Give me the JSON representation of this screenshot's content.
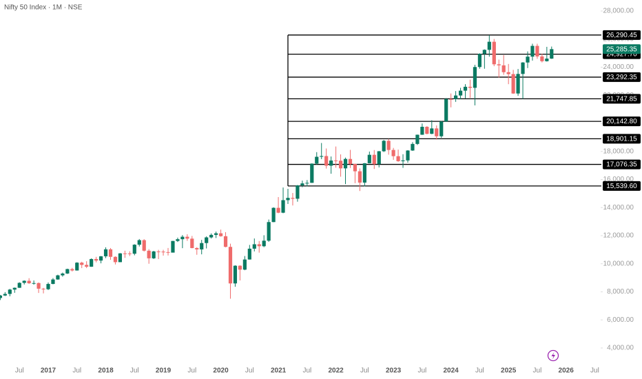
{
  "chart_data": {
    "type": "candlestick",
    "title": "Nifty 50 Index · 1M · NSE",
    "up_color": "#0b7a62",
    "down_color": "#ef6b6b",
    "ylim": [
      4000,
      28000
    ],
    "yticks": [
      {
        "value": 4000,
        "label": "4,000.00"
      },
      {
        "value": 6000,
        "label": "6,000.00"
      },
      {
        "value": 8000,
        "label": "8,000.00"
      },
      {
        "value": 10000,
        "label": "10,000.00"
      },
      {
        "value": 12000,
        "label": "12,000.00"
      },
      {
        "value": 14000,
        "label": "14,000.00"
      },
      {
        "value": 16000,
        "label": "16,000.00"
      },
      {
        "value": 18000,
        "label": "18,000.00"
      },
      {
        "value": 20000,
        "label": "20,000.00"
      },
      {
        "value": 22000,
        "label": "22,000.00"
      },
      {
        "value": 24000,
        "label": "24,000.00"
      },
      {
        "value": 26000,
        "label": "26,000.00"
      },
      {
        "value": 28000,
        "label": "28,000.00"
      }
    ],
    "xticks": [
      {
        "value": "2016-07",
        "label": "Jul"
      },
      {
        "value": "2017-01",
        "label": "2017"
      },
      {
        "value": "2017-07",
        "label": "Jul"
      },
      {
        "value": "2018-01",
        "label": "2018"
      },
      {
        "value": "2018-07",
        "label": "Jul"
      },
      {
        "value": "2019-01",
        "label": "2019"
      },
      {
        "value": "2019-07",
        "label": "Jul"
      },
      {
        "value": "2020-01",
        "label": "2020"
      },
      {
        "value": "2020-07",
        "label": "Jul"
      },
      {
        "value": "2021-01",
        "label": "2021"
      },
      {
        "value": "2021-07",
        "label": "Jul"
      },
      {
        "value": "2022-01",
        "label": "2022"
      },
      {
        "value": "2022-07",
        "label": "Jul"
      },
      {
        "value": "2023-01",
        "label": "2023"
      },
      {
        "value": "2023-07",
        "label": "Jul"
      },
      {
        "value": "2024-01",
        "label": "2024"
      },
      {
        "value": "2024-07",
        "label": "Jul"
      },
      {
        "value": "2025-01",
        "label": "2025"
      },
      {
        "value": "2025-07",
        "label": "Jul"
      },
      {
        "value": "2026-01",
        "label": "2026"
      },
      {
        "value": "2026-07",
        "label": "Jul"
      }
    ],
    "levels": [
      {
        "value": 26290.45,
        "label": "26,290.45"
      },
      {
        "value": 24927.7,
        "label": "24,927.70"
      },
      {
        "value": 23292.35,
        "label": "23,292.35"
      },
      {
        "value": 21747.85,
        "label": "21,747.85"
      },
      {
        "value": 20142.8,
        "label": "20,142.80"
      },
      {
        "value": 18901.15,
        "label": "18,901.15"
      },
      {
        "value": 17076.35,
        "label": "17,076.35"
      },
      {
        "value": 15539.6,
        "label": "15,539.60"
      }
    ],
    "last_price": {
      "value": 25285.35,
      "label": "25,285.35"
    },
    "x": [
      "2016-03",
      "2016-04",
      "2016-05",
      "2016-06",
      "2016-07",
      "2016-08",
      "2016-09",
      "2016-10",
      "2016-11",
      "2016-12",
      "2017-01",
      "2017-02",
      "2017-03",
      "2017-04",
      "2017-05",
      "2017-06",
      "2017-07",
      "2017-08",
      "2017-09",
      "2017-10",
      "2017-11",
      "2017-12",
      "2018-01",
      "2018-02",
      "2018-03",
      "2018-04",
      "2018-05",
      "2018-06",
      "2018-07",
      "2018-08",
      "2018-09",
      "2018-10",
      "2018-11",
      "2018-12",
      "2019-01",
      "2019-02",
      "2019-03",
      "2019-04",
      "2019-05",
      "2019-06",
      "2019-07",
      "2019-08",
      "2019-09",
      "2019-10",
      "2019-11",
      "2019-12",
      "2020-01",
      "2020-02",
      "2020-03",
      "2020-04",
      "2020-05",
      "2020-06",
      "2020-07",
      "2020-08",
      "2020-09",
      "2020-10",
      "2020-11",
      "2020-12",
      "2021-01",
      "2021-02",
      "2021-03",
      "2021-04",
      "2021-05",
      "2021-06",
      "2021-07",
      "2021-08",
      "2021-09",
      "2021-10",
      "2021-11",
      "2021-12",
      "2022-01",
      "2022-02",
      "2022-03",
      "2022-04",
      "2022-05",
      "2022-06",
      "2022-07",
      "2022-08",
      "2022-09",
      "2022-10",
      "2022-11",
      "2022-12",
      "2023-01",
      "2023-02",
      "2023-03",
      "2023-04",
      "2023-05",
      "2023-06",
      "2023-07",
      "2023-08",
      "2023-09",
      "2023-10",
      "2023-11",
      "2023-12",
      "2024-01",
      "2024-02",
      "2024-03",
      "2024-04",
      "2024-05",
      "2024-06",
      "2024-07",
      "2024-08",
      "2024-09",
      "2024-10",
      "2024-11",
      "2024-12",
      "2025-01",
      "2025-02",
      "2025-03",
      "2025-04",
      "2025-05",
      "2025-06",
      "2025-07",
      "2025-08",
      "2025-09",
      "2025-10"
    ],
    "ohlc": [
      [
        7560,
        7780,
        7420,
        7738
      ],
      [
        7738,
        7980,
        7700,
        7850
      ],
      [
        7850,
        8210,
        7680,
        8160
      ],
      [
        8160,
        8310,
        7930,
        8288
      ],
      [
        8288,
        8680,
        8280,
        8639
      ],
      [
        8639,
        8820,
        8520,
        8786
      ],
      [
        8786,
        8970,
        8560,
        8611
      ],
      [
        8611,
        8810,
        8510,
        8625
      ],
      [
        8625,
        8670,
        7920,
        8224
      ],
      [
        8224,
        8280,
        7890,
        8186
      ],
      [
        8186,
        8670,
        8130,
        8561
      ],
      [
        8561,
        8980,
        8540,
        8880
      ],
      [
        8880,
        9220,
        8860,
        9174
      ],
      [
        9174,
        9370,
        9080,
        9304
      ],
      [
        9304,
        9650,
        9270,
        9621
      ],
      [
        9621,
        9710,
        9450,
        9521
      ],
      [
        9521,
        10110,
        9510,
        10077
      ],
      [
        10077,
        10140,
        9690,
        9918
      ],
      [
        9918,
        10180,
        9690,
        9789
      ],
      [
        9789,
        10380,
        9780,
        10335
      ],
      [
        10335,
        10490,
        10100,
        10227
      ],
      [
        10227,
        10550,
        10030,
        10531
      ],
      [
        10531,
        11170,
        10400,
        11028
      ],
      [
        11028,
        11120,
        10280,
        10493
      ],
      [
        10493,
        10530,
        9950,
        10114
      ],
      [
        10114,
        10760,
        10110,
        10739
      ],
      [
        10739,
        10930,
        10420,
        10736
      ],
      [
        10736,
        10890,
        10550,
        10714
      ],
      [
        10714,
        11390,
        10600,
        11357
      ],
      [
        11357,
        11760,
        11230,
        11681
      ],
      [
        11681,
        11750,
        10870,
        10930
      ],
      [
        10930,
        11040,
        10000,
        10387
      ],
      [
        10387,
        10920,
        10340,
        10877
      ],
      [
        10877,
        10990,
        10330,
        10863
      ],
      [
        10863,
        10990,
        10580,
        10831
      ],
      [
        10831,
        11120,
        10590,
        10793
      ],
      [
        10793,
        11630,
        10820,
        11624
      ],
      [
        11624,
        11860,
        11550,
        11748
      ],
      [
        11748,
        12040,
        11110,
        11923
      ],
      [
        11923,
        12100,
        11630,
        11789
      ],
      [
        11789,
        11980,
        11100,
        11118
      ],
      [
        11118,
        11180,
        10640,
        11023
      ],
      [
        11023,
        11700,
        10670,
        11474
      ],
      [
        11474,
        11950,
        11090,
        11877
      ],
      [
        11877,
        12160,
        11800,
        12056
      ],
      [
        12056,
        12290,
        11830,
        12168
      ],
      [
        12168,
        12430,
        11930,
        11962
      ],
      [
        11962,
        12250,
        11170,
        11202
      ],
      [
        11202,
        11430,
        7510,
        8598
      ],
      [
        8598,
        9890,
        8360,
        9860
      ],
      [
        9860,
        9890,
        8810,
        9580
      ],
      [
        9580,
        10550,
        9540,
        10302
      ],
      [
        10302,
        11340,
        10300,
        11073
      ],
      [
        11073,
        11800,
        10880,
        11388
      ],
      [
        11388,
        11620,
        10790,
        11248
      ],
      [
        11248,
        12030,
        11180,
        11642
      ],
      [
        11642,
        13150,
        11560,
        12969
      ],
      [
        12969,
        14020,
        12960,
        13982
      ],
      [
        13982,
        14750,
        13600,
        13635
      ],
      [
        13635,
        15430,
        13600,
        14529
      ],
      [
        14529,
        15340,
        14260,
        14691
      ],
      [
        14691,
        15040,
        14150,
        14631
      ],
      [
        14631,
        15610,
        14420,
        15583
      ],
      [
        15583,
        15920,
        15450,
        15722
      ],
      [
        15722,
        15960,
        15510,
        15763
      ],
      [
        15763,
        17150,
        15760,
        17132
      ],
      [
        17132,
        17950,
        17060,
        17618
      ],
      [
        17618,
        18600,
        17450,
        17672
      ],
      [
        17672,
        18210,
        16780,
        16983
      ],
      [
        16983,
        17640,
        16410,
        17354
      ],
      [
        17354,
        18350,
        16840,
        17340
      ],
      [
        17340,
        17790,
        16200,
        16794
      ],
      [
        16794,
        17560,
        15670,
        17465
      ],
      [
        17465,
        18110,
        16820,
        17103
      ],
      [
        17103,
        17130,
        15740,
        16585
      ],
      [
        16585,
        16790,
        15180,
        15780
      ],
      [
        15780,
        17170,
        15510,
        17158
      ],
      [
        17158,
        17990,
        17150,
        17759
      ],
      [
        17759,
        18100,
        16750,
        17094
      ],
      [
        17094,
        18030,
        16860,
        18012
      ],
      [
        18012,
        18820,
        17960,
        18758
      ],
      [
        18758,
        18890,
        17770,
        18105
      ],
      [
        18105,
        18250,
        17400,
        17662
      ],
      [
        17662,
        18130,
        17260,
        17304
      ],
      [
        17304,
        17800,
        16830,
        17360
      ],
      [
        17360,
        18090,
        17200,
        18065
      ],
      [
        18065,
        18660,
        18040,
        18534
      ],
      [
        18534,
        19200,
        18460,
        19189
      ],
      [
        19189,
        19990,
        19180,
        19754
      ],
      [
        19754,
        19800,
        19220,
        19254
      ],
      [
        19254,
        20220,
        19230,
        19638
      ],
      [
        19638,
        19850,
        18840,
        19080
      ],
      [
        19080,
        20160,
        18970,
        20133
      ],
      [
        20133,
        21800,
        20110,
        21731
      ],
      [
        21731,
        22130,
        21140,
        21726
      ],
      [
        21726,
        22300,
        21530,
        21983
      ],
      [
        21983,
        22530,
        21710,
        22327
      ],
      [
        22327,
        22790,
        21780,
        22605
      ],
      [
        22605,
        23110,
        21820,
        22531
      ],
      [
        22531,
        24170,
        21280,
        24011
      ],
      [
        24011,
        24990,
        23890,
        24951
      ],
      [
        24951,
        25270,
        23890,
        25236
      ],
      [
        25236,
        26280,
        24750,
        25811
      ],
      [
        25811,
        26010,
        24070,
        24205
      ],
      [
        24205,
        24540,
        23260,
        24131
      ],
      [
        24131,
        24860,
        23460,
        23645
      ],
      [
        23645,
        24230,
        22790,
        23508
      ],
      [
        23508,
        23810,
        22100,
        22125
      ],
      [
        22125,
        23870,
        21960,
        23519
      ],
      [
        23519,
        24360,
        21740,
        24334
      ],
      [
        24334,
        25120,
        23940,
        24751
      ],
      [
        24751,
        25670,
        24470,
        25517
      ],
      [
        25517,
        25670,
        24600,
        24768
      ],
      [
        24768,
        24960,
        24340,
        24427
      ],
      [
        24427,
        25450,
        24400,
        24611
      ],
      [
        24611,
        25470,
        24590,
        25285.35
      ]
    ]
  }
}
